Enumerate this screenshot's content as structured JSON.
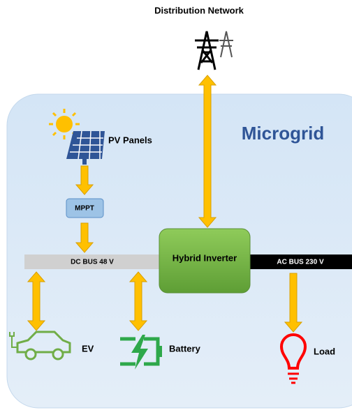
{
  "title": "Distribution Network",
  "region": "Microgrid",
  "nodes": [
    {
      "label": "PV Panels"
    },
    {
      "label": "MPPT"
    },
    {
      "label": "DC BUS 48 V"
    },
    {
      "label": "Hybrid Inverter"
    },
    {
      "label": "AC BUS 230 V"
    },
    {
      "label": "EV"
    },
    {
      "label": "Battery"
    },
    {
      "label": "Load"
    }
  ]
}
